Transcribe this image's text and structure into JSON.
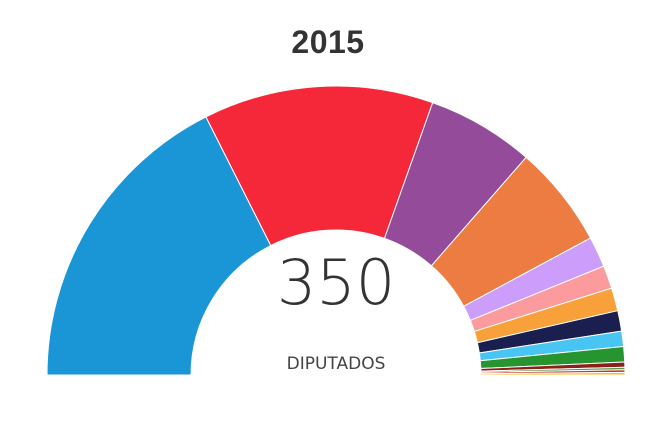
{
  "title": "2015",
  "total": "350",
  "total_label": "DIPUTADOS",
  "chart_data": {
    "type": "pie",
    "subtype": "semicircle-parliament",
    "title": "2015",
    "total": 350,
    "center_label": "DIPUTADOS",
    "series": [
      {
        "value": 123,
        "color": "#1a96d6"
      },
      {
        "value": 90,
        "color": "#f5283a"
      },
      {
        "value": 42,
        "color": "#944b9a"
      },
      {
        "value": 40,
        "color": "#ec7c42"
      },
      {
        "value": 12,
        "color": "#cc9dfa"
      },
      {
        "value": 9,
        "color": "#fb9b9e"
      },
      {
        "value": 9,
        "color": "#f8a13a"
      },
      {
        "value": 8,
        "color": "#1a1f4f"
      },
      {
        "value": 6,
        "color": "#48c5f3"
      },
      {
        "value": 6,
        "color": "#26952f"
      },
      {
        "value": 2,
        "color": "#8c1f1a"
      },
      {
        "value": 1,
        "color": "#4f9d45"
      },
      {
        "value": 1,
        "color": "#d13031"
      },
      {
        "value": 1,
        "color": "#ffbe17"
      }
    ]
  }
}
